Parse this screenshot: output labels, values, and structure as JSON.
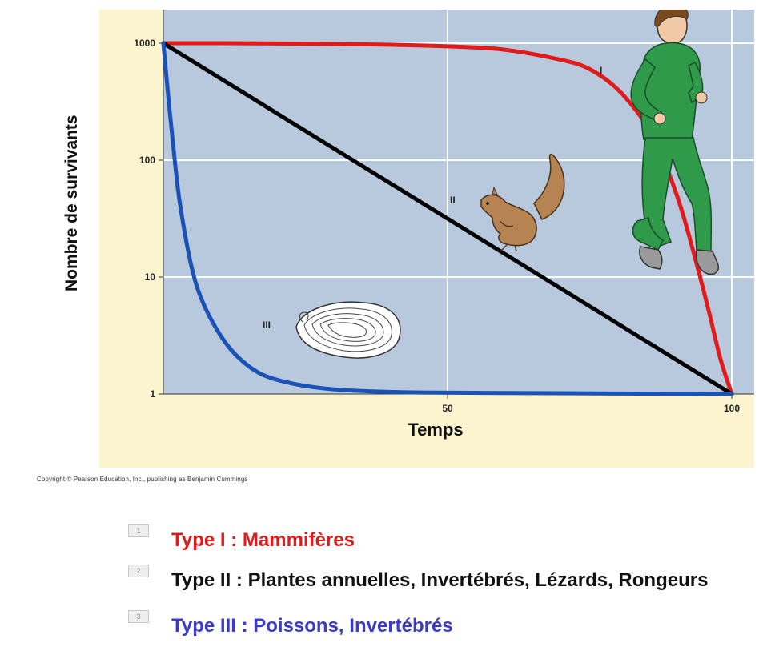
{
  "chart_data": {
    "type": "line",
    "ylabel": "Nombre de survivants",
    "xlabel": "Temps",
    "y_scale": "log",
    "ylim": [
      1,
      1000
    ],
    "xlim": [
      0,
      100
    ],
    "x_ticks": [
      "50",
      "100"
    ],
    "y_ticks": [
      "1000",
      "100",
      "10",
      "1"
    ],
    "grid": true,
    "series": [
      {
        "name": "I",
        "color": "#e01b1b",
        "x": [
          0,
          10,
          20,
          30,
          40,
          50,
          60,
          70,
          75,
          80,
          85,
          88,
          91,
          94,
          96,
          98,
          100
        ],
        "y": [
          1000,
          1000,
          995,
          985,
          970,
          940,
          880,
          720,
          600,
          400,
          200,
          100,
          40,
          12,
          5,
          2,
          1
        ]
      },
      {
        "name": "II",
        "color": "#000000",
        "x": [
          0,
          50,
          100
        ],
        "y": [
          1000,
          31.6,
          1
        ]
      },
      {
        "name": "III",
        "color": "#1a52b5",
        "x": [
          0,
          1,
          2,
          3,
          5,
          7,
          10,
          13,
          17,
          22,
          28,
          35,
          45,
          60,
          80,
          100
        ],
        "y": [
          1000,
          300,
          100,
          40,
          12,
          6,
          3.2,
          2.1,
          1.5,
          1.25,
          1.12,
          1.06,
          1.03,
          1.02,
          1.01,
          1
        ]
      }
    ]
  },
  "copyright": "Copyright © Pearson Education, Inc., publishing as Benjamin Cummings",
  "legend": [
    {
      "number": "1",
      "text": "Type I : Mammifères",
      "color": "#e01b1b"
    },
    {
      "number": "2",
      "text": "Type II : Plantes annuelles, Invertébrés, Lézards, Rongeurs",
      "color": "#111111"
    },
    {
      "number": "3",
      "text": "Type III : Poissons, Invertébrés",
      "color": "#3b3bc8"
    }
  ],
  "colors": {
    "plot_background": "#b9c9dd",
    "panel_background": "#fbf4cf",
    "gridline": "#ffffff"
  },
  "icons": [
    "runner-icon",
    "squirrel-icon",
    "oyster-icon"
  ]
}
